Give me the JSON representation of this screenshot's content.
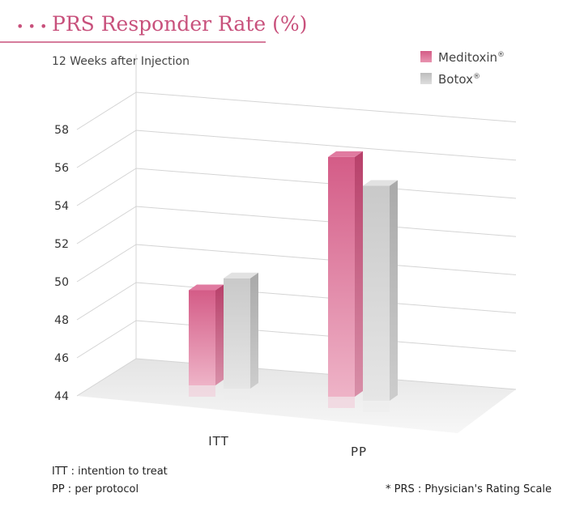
{
  "header": {
    "dots": "• • •",
    "title": "PRS Responder Rate (%)",
    "subtitle": "12 Weeks after Injection"
  },
  "legend": [
    {
      "name": "Meditoxin",
      "mark": "®",
      "color": "#d9668e"
    },
    {
      "name": "Botox",
      "mark": "®",
      "color": "#c4c4c4"
    }
  ],
  "chart_data": {
    "type": "bar",
    "title": "PRS Responder Rate (%)",
    "subtitle": "12 Weeks after Injection",
    "categories": [
      "ITT",
      "PP"
    ],
    "series": [
      {
        "name": "Meditoxin®",
        "values": [
          49.0,
          56.6
        ]
      },
      {
        "name": "Botox®",
        "values": [
          49.8,
          55.3
        ]
      }
    ],
    "yticks": [
      44,
      46,
      48,
      50,
      52,
      54,
      56,
      58
    ],
    "ylim": [
      44,
      58
    ],
    "xlabel": "",
    "ylabel": "",
    "grid": true,
    "legend_position": "top-right"
  },
  "footnotes": {
    "left": [
      "ITT : intention to treat",
      "PP : per protocol"
    ],
    "right": "* PRS : Physician's Rating Scale"
  },
  "colors": {
    "accent": "#c8517c",
    "meditoxin": "#d9668e",
    "botox": "#c4c4c4"
  }
}
